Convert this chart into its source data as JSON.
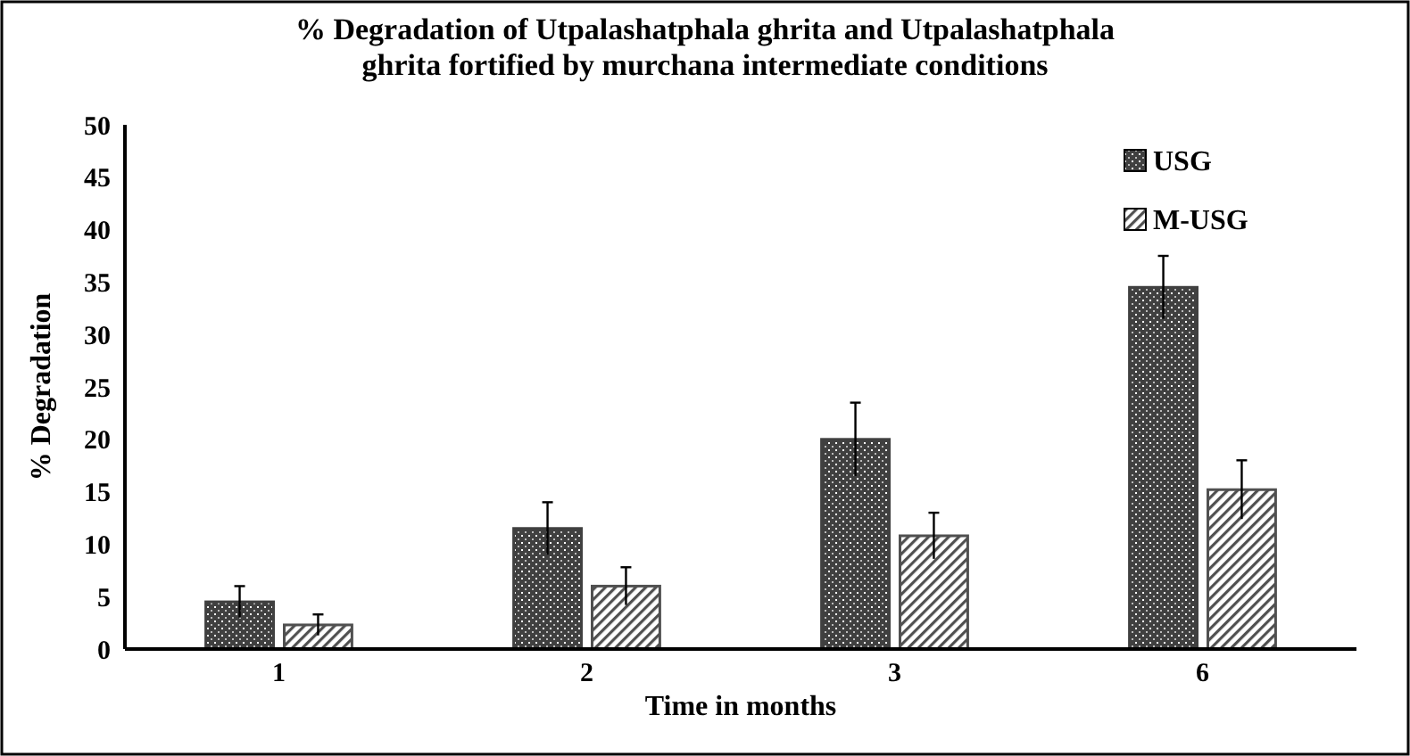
{
  "chart_data": {
    "type": "bar",
    "title": "% Degradation of Utpalashatphala ghrita  and Utpalashatphala ghrita fortified by murchana intermediate conditions",
    "xlabel": "Time in months",
    "ylabel": "% Degradation",
    "categories": [
      "1",
      "2",
      "3",
      "6"
    ],
    "series": [
      {
        "name": "USG",
        "color": "#404040",
        "values": [
          4.5,
          11.5,
          20,
          34.5
        ],
        "errors": [
          1.5,
          2.5,
          3.5,
          3
        ]
      },
      {
        "name": "M-USG",
        "color": "#505050",
        "values": [
          2.3,
          6,
          10.8,
          15.2
        ],
        "errors": [
          1,
          1.8,
          2.2,
          2.8
        ]
      }
    ],
    "ylim": [
      0,
      50
    ],
    "yticks": [
      0,
      5,
      10,
      15,
      20,
      25,
      30,
      35,
      40,
      45,
      50
    ],
    "grid": false,
    "legend": "top right"
  }
}
